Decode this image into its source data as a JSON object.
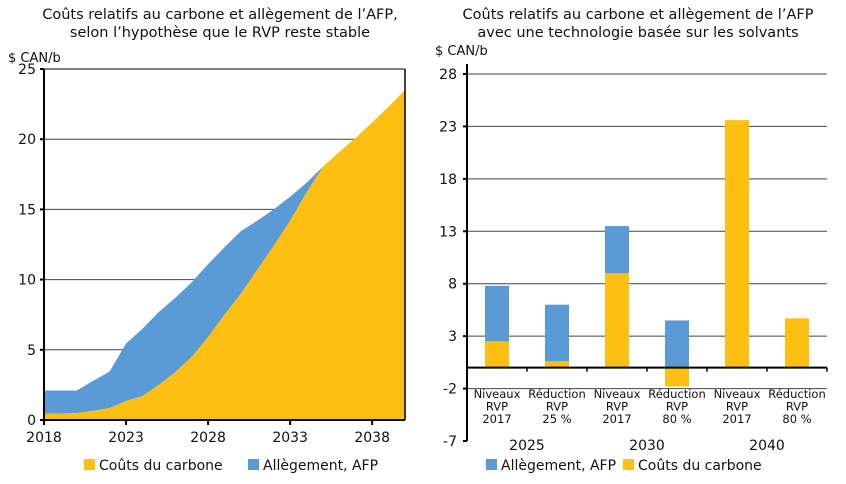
{
  "colors": {
    "carbon": "#FDBF11",
    "afp": "#5B9BD5"
  },
  "chart_data": [
    {
      "type": "area",
      "stacked": true,
      "title_line1": "Coûts relatifs au carbone et allègement de l’AFP,",
      "title_line2": "selon l’hypothèse que le RVP reste stable",
      "ylabel": "$ CAN/b",
      "ylim": [
        0,
        25
      ],
      "yticks": [
        0,
        5,
        10,
        15,
        20,
        25
      ],
      "xlim": [
        2018,
        2040
      ],
      "xticks": [
        2018,
        2023,
        2028,
        2033,
        2038
      ],
      "grid": true,
      "legend_position": "bottom",
      "x": [
        2018,
        2019,
        2020,
        2021,
        2022,
        2023,
        2024,
        2025,
        2026,
        2027,
        2028,
        2029,
        2030,
        2031,
        2032,
        2033,
        2034,
        2035,
        2036,
        2037,
        2038,
        2039,
        2040
      ],
      "series": [
        {
          "name": "Coûts du carbone",
          "color": "#FDBF11",
          "values": [
            0.45,
            0.45,
            0.5,
            0.65,
            0.85,
            1.35,
            1.7,
            2.5,
            3.4,
            4.5,
            5.9,
            7.5,
            9.0,
            10.7,
            12.4,
            14.2,
            16.2,
            18.05,
            19.1,
            20.1,
            21.2,
            22.3,
            23.5
          ]
        },
        {
          "name": "Allègement, AFP",
          "color": "#5B9BD5",
          "values": [
            1.65,
            1.65,
            1.6,
            2.15,
            2.6,
            4.1,
            4.8,
            5.2,
            5.3,
            5.3,
            5.2,
            4.8,
            4.45,
            3.5,
            2.6,
            1.7,
            0.7,
            0,
            0,
            0,
            0,
            0,
            0
          ]
        }
      ]
    },
    {
      "type": "bar",
      "stacked": true,
      "title_line1": "Coûts relatifs au carbone et allègement de l’AFP",
      "title_line2": "avec une technologie basée sur les solvants",
      "ylabel": "$ CAN/b",
      "ylim": [
        -7,
        28
      ],
      "yticks": [
        -7,
        -2,
        3,
        8,
        13,
        18,
        23,
        28
      ],
      "grid": true,
      "legend_position": "bottom",
      "categories": [
        [
          "Niveaux",
          "RVP",
          "2017"
        ],
        [
          "Réduction",
          "RVP",
          "25 %"
        ],
        [
          "Niveaux",
          "RVP",
          "2017"
        ],
        [
          "Réduction",
          "RVP",
          "80 %"
        ],
        [
          "Niveaux",
          "RVP",
          "2017"
        ],
        [
          "Réduction",
          "RVP",
          "80 %"
        ]
      ],
      "groups": [
        "2025",
        "2030",
        "2040"
      ],
      "series": [
        {
          "name": "Allègement, AFP",
          "color": "#5B9BD5",
          "values": [
            5.3,
            5.4,
            4.5,
            4.5,
            0,
            0
          ]
        },
        {
          "name": "Coûts du carbone",
          "color": "#FDBF11",
          "values": [
            2.5,
            0.6,
            9.0,
            -1.8,
            23.6,
            4.7
          ]
        }
      ]
    }
  ]
}
